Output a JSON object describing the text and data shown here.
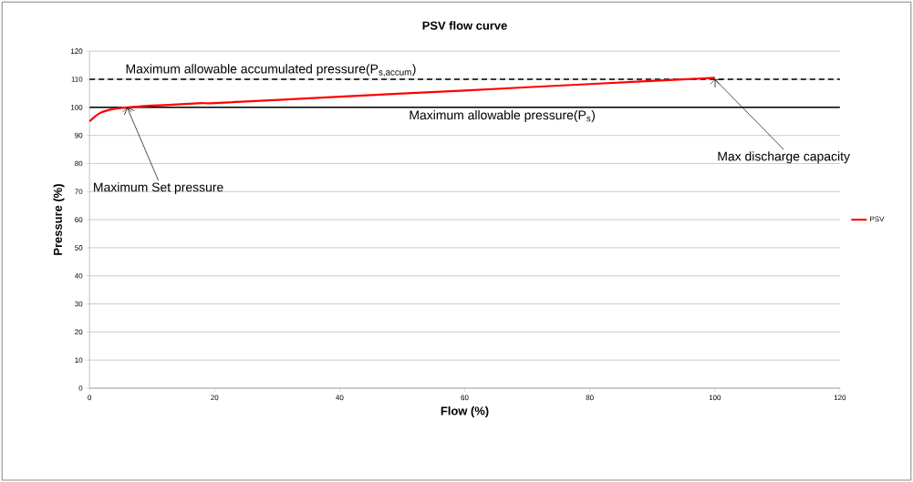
{
  "chart_data": {
    "type": "line",
    "title": "PSV flow curve",
    "xlabel": "Flow (%)",
    "ylabel": "Pressure (%)",
    "series": [
      {
        "name": "PSV",
        "color": "#ff0000",
        "x": [
          0,
          1,
          2,
          3,
          4,
          6,
          8,
          10,
          14,
          18,
          20,
          40,
          60,
          80,
          100
        ],
        "values": [
          95,
          97,
          98.3,
          99,
          99.5,
          100,
          100.3,
          100.6,
          101,
          101.5,
          101.5,
          103.8,
          106,
          108.3,
          110.5
        ]
      }
    ],
    "ref_lines": [
      {
        "axis": "y",
        "value": 110,
        "label": "Maximum allowable accumulated pressure(P$_{s,accum}$)",
        "color": "#000000",
        "line_style": "dashed"
      },
      {
        "axis": "y",
        "value": 100,
        "label": "Maximum allowable pressure(P$_{s}$)",
        "color": "#000000",
        "line_style": "solid"
      }
    ],
    "annotations": [
      {
        "text": "Maximum Set pressure",
        "x": 6,
        "y": 100
      },
      {
        "text": "Max discharge capacity",
        "x": 100,
        "y": 110
      }
    ],
    "xlim": [
      0,
      120
    ],
    "ylim": [
      0,
      120
    ],
    "xticks": [
      0,
      20,
      40,
      60,
      80,
      100,
      120
    ],
    "yticks": [
      0,
      10,
      20,
      30,
      40,
      50,
      60,
      70,
      80,
      90,
      100,
      110,
      120
    ],
    "grid": "y",
    "legend": "right",
    "marker": "none",
    "line_style": "solid"
  }
}
